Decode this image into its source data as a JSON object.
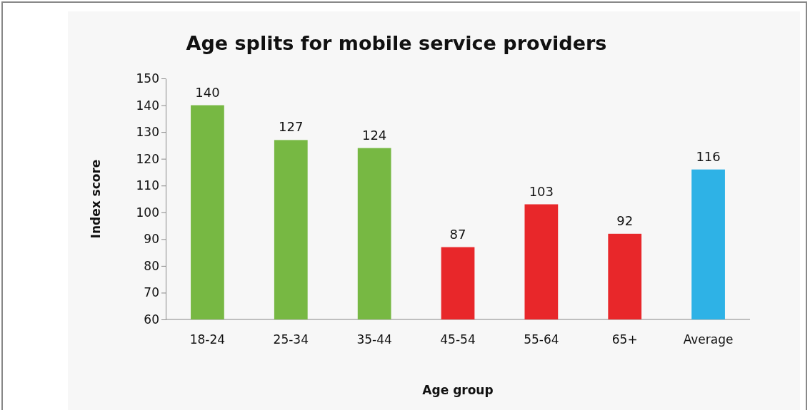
{
  "chart_data": {
    "type": "bar",
    "title": "Age splits for mobile service providers",
    "xlabel": "Age group",
    "ylabel": "Index score",
    "categories": [
      "18-24",
      "25-34",
      "35-44",
      "45-54",
      "55-64",
      "65+",
      "Average"
    ],
    "values": [
      140,
      127,
      124,
      87,
      103,
      92,
      116
    ],
    "colors": [
      "#77b843",
      "#77b843",
      "#77b843",
      "#e8272a",
      "#e8272a",
      "#e8272a",
      "#2eb2e6"
    ],
    "ylim": [
      60,
      150
    ],
    "yticks": [
      60,
      70,
      80,
      90,
      100,
      110,
      120,
      130,
      140,
      150
    ],
    "data_labels": true
  }
}
